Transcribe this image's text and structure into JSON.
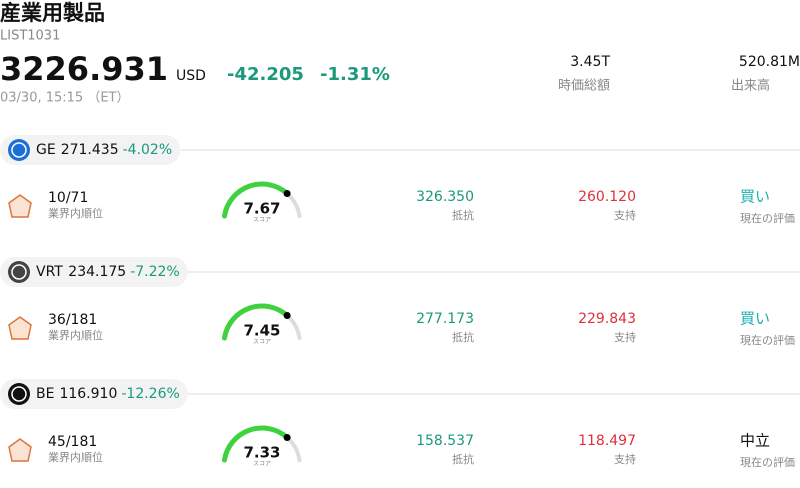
{
  "header": {
    "title": "産業用製品",
    "code": "LIST1031",
    "price": "3226.931",
    "currency": "USD",
    "change": "-42.205",
    "change_pct": "-1.31%",
    "time": "03/30, 15:15 （ET）",
    "stats": [
      {
        "value": "3.45T",
        "label": "時価総額"
      },
      {
        "value": "520.81M",
        "label": "出来高"
      }
    ]
  },
  "stocks": [
    {
      "ticker": "GE",
      "price": "271.435",
      "change_pct": "-4.02%",
      "rank": "10/71",
      "rank_label": "業界内順位",
      "score": "7.67",
      "score_label": "スコア",
      "resistance": "326.350",
      "resistance_label": "抵抗",
      "support": "260.120",
      "support_label": "支持",
      "rating": "買い",
      "rating_label": "現在の評価"
    },
    {
      "ticker": "VRT",
      "price": "234.175",
      "change_pct": "-7.22%",
      "rank": "36/181",
      "rank_label": "業界内順位",
      "score": "7.45",
      "score_label": "スコア",
      "resistance": "277.173",
      "resistance_label": "抵抗",
      "support": "229.843",
      "support_label": "支持",
      "rating": "買い",
      "rating_label": "現在の評価"
    },
    {
      "ticker": "BE",
      "price": "116.910",
      "change_pct": "-12.26%",
      "rank": "45/181",
      "rank_label": "業界内順位",
      "score": "7.33",
      "score_label": "スコア",
      "resistance": "158.537",
      "resistance_label": "抵抗",
      "support": "118.497",
      "support_label": "支持",
      "rating": "中立",
      "rating_label": "現在の評価"
    }
  ]
}
